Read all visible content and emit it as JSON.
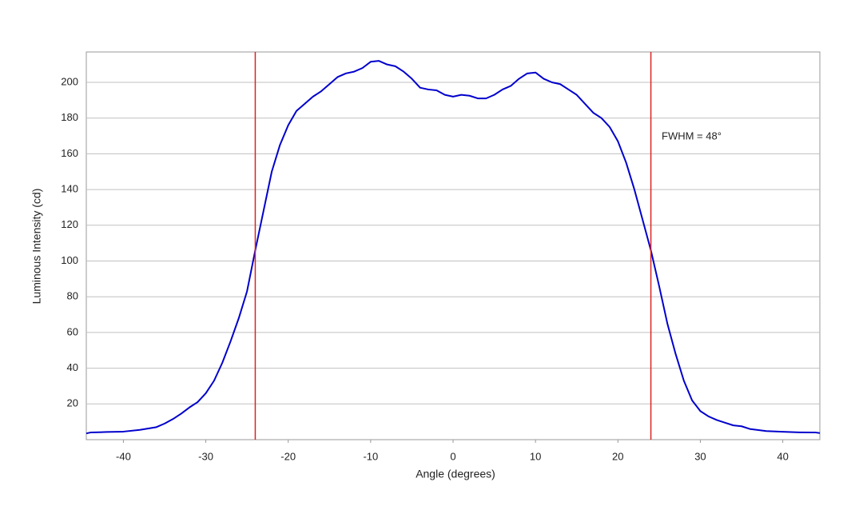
{
  "chart_data": {
    "type": "line",
    "xlabel": "Angle (degrees)",
    "ylabel": "Luminous Intensity (cd)",
    "annotation": "FWHM = 48°",
    "x": [
      -44.5,
      -44,
      -42,
      -40,
      -38,
      -36,
      -35,
      -34,
      -33,
      -32,
      -31,
      -30,
      -29,
      -28,
      -27,
      -26,
      -25,
      -24,
      -23,
      -22,
      -21,
      -20,
      -19,
      -18,
      -17,
      -16,
      -15,
      -14,
      -13,
      -12,
      -11,
      -10,
      -9,
      -8,
      -7,
      -6,
      -5,
      -4,
      -3,
      -2,
      -1,
      0,
      1,
      2,
      3,
      4,
      5,
      6,
      7,
      8,
      9,
      10,
      11,
      12,
      13,
      14,
      15,
      16,
      17,
      18,
      19,
      20,
      21,
      22,
      23,
      24,
      25,
      26,
      27,
      28,
      29,
      30,
      31,
      32,
      33,
      34,
      35,
      36,
      38,
      40,
      42,
      44,
      44.5
    ],
    "series": [
      {
        "color": "#0000cc",
        "values": [
          3.5,
          4,
          4.3,
          4.5,
          5.5,
          7,
          9,
          11.5,
          14.5,
          18,
          21,
          26,
          33,
          43,
          55,
          68,
          83,
          106,
          128,
          150,
          165,
          176,
          184,
          188,
          192,
          195,
          199,
          203,
          205,
          206,
          208,
          211.5,
          212,
          210,
          209,
          206,
          202,
          197,
          196,
          195.5,
          193,
          192,
          193,
          192.5,
          191,
          191,
          193,
          196,
          198,
          202,
          205,
          205.5,
          202,
          200,
          199,
          196,
          193,
          188,
          183,
          180,
          175,
          167,
          155,
          140,
          123,
          106,
          86,
          65,
          48,
          33,
          22,
          16,
          13,
          11,
          9.5,
          8,
          7.5,
          6,
          4.8,
          4.4,
          4.1,
          4,
          3.7
        ]
      }
    ],
    "vlines": [
      -24,
      24
    ],
    "vline_color": "#dd2222",
    "xlim": [
      -44.5,
      44.5
    ],
    "ylim": [
      0,
      217
    ],
    "xticks": [
      -40,
      -30,
      -20,
      -10,
      0,
      10,
      20,
      30,
      40
    ],
    "yticks": [
      20,
      40,
      60,
      80,
      100,
      120,
      140,
      160,
      180,
      200
    ],
    "grid": true
  }
}
